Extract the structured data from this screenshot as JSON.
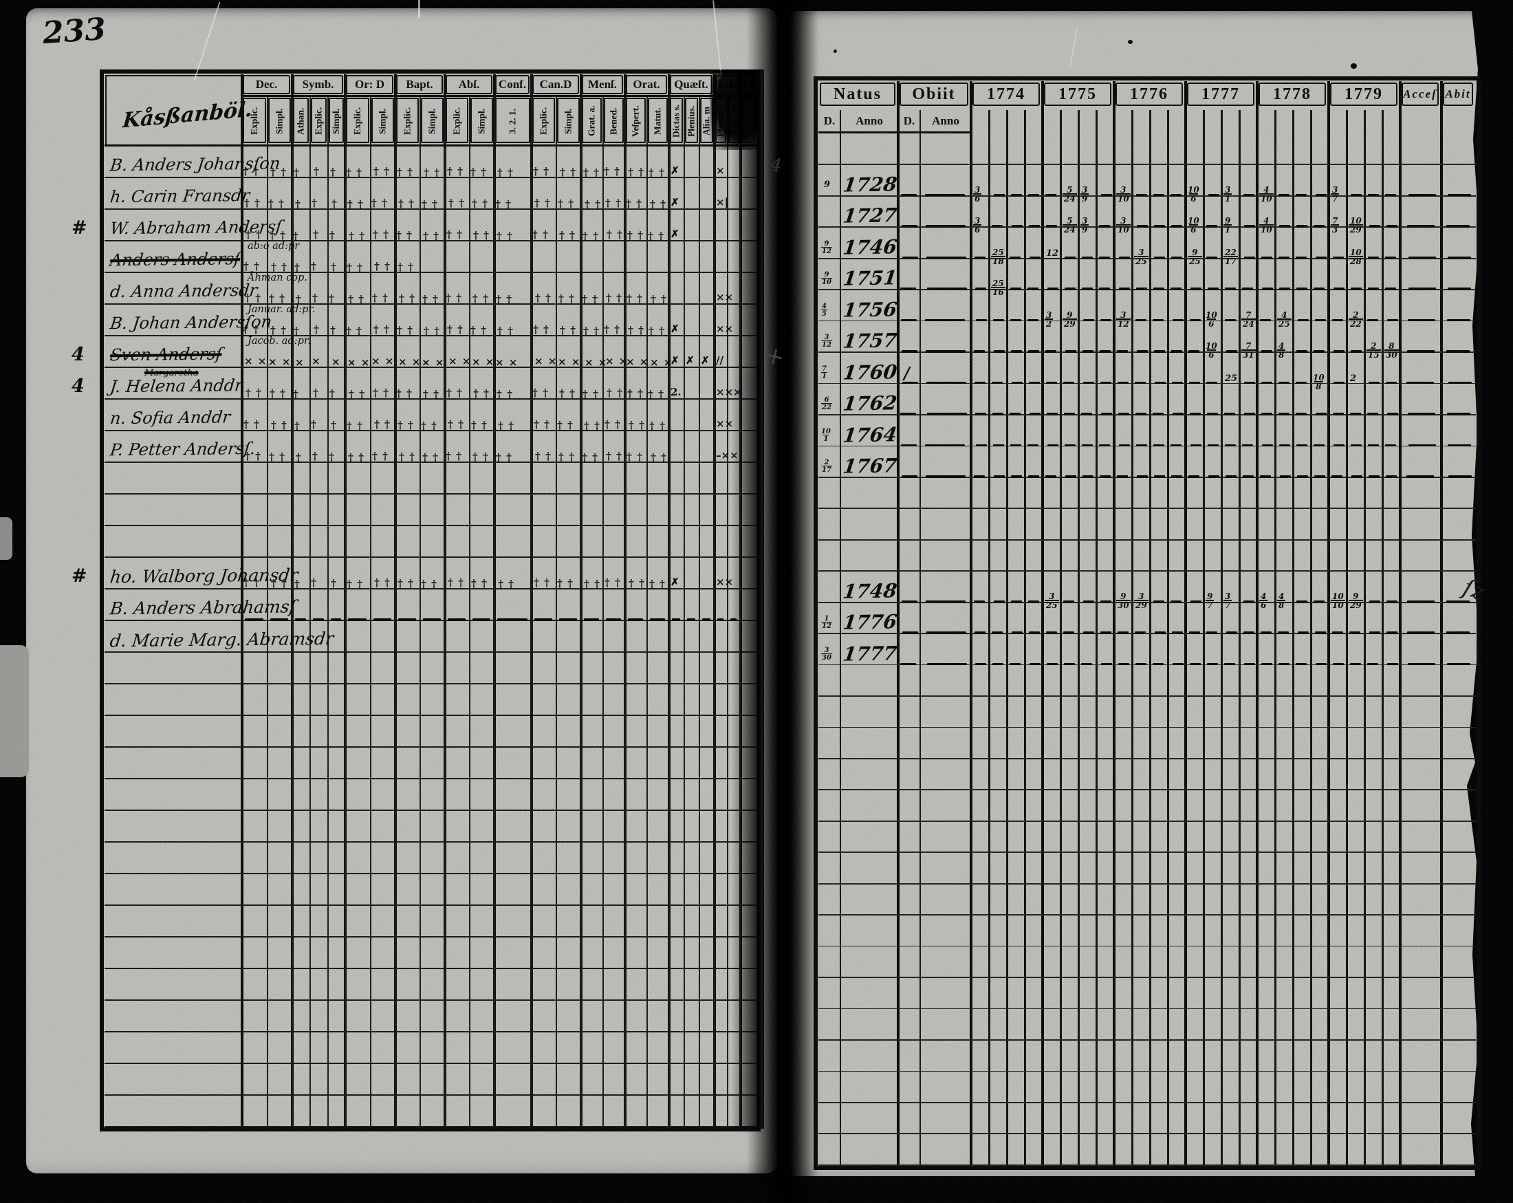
{
  "photo": {
    "page_number": "233"
  },
  "left_page": {
    "title_scribble": "Kåsßanböl.",
    "columns": [
      {
        "label": "Dec.",
        "subs": [
          "Explic.",
          "Simpl."
        ]
      },
      {
        "label": "Symb.",
        "subs": [
          "Athan.",
          "Explic.",
          "Simpl."
        ]
      },
      {
        "label": "Or: D",
        "subs": [
          "Explic.",
          "Simpl."
        ]
      },
      {
        "label": "Bapt.",
        "subs": [
          "Explic.",
          "Simpl."
        ]
      },
      {
        "label": "Abſ.",
        "subs": [
          "Explic.",
          "Simpl."
        ]
      },
      {
        "label": "Conf.",
        "subs": [
          "3. 2. 1."
        ]
      },
      {
        "label": "Can.D",
        "subs": [
          "Explic.",
          "Simpl."
        ]
      },
      {
        "label": "Menſ.",
        "subs": [
          "Grat. a.",
          "Bened."
        ]
      },
      {
        "label": "Orat.",
        "subs": [
          "Veſpert.",
          "Matut."
        ]
      },
      {
        "label": "Quæſt.",
        "subs": [
          "Dictas s.",
          "Plenius.",
          "Alia. m"
        ]
      },
      {
        "label": "Tales",
        "subs": [
          "Plenius.",
          "Alia. m"
        ]
      },
      {
        "label": "Lä",
        "subs": [
          ""
        ]
      }
    ],
    "rows": [
      {
        "i": 0,
        "name": "B. Anders Johansſon",
        "crosses": "full",
        "tail": {
          "18": "✗",
          "21": "×"
        }
      },
      {
        "i": 1,
        "name": "h. Carin Fransdr",
        "crosses": "full",
        "tail": {
          "18": "✗",
          "21": "×|"
        }
      },
      {
        "i": 2,
        "name": "W. Abraham Andersſ",
        "margin": "#",
        "crosses": "full",
        "tail": {
          "18": "✗"
        }
      },
      {
        "i": 3,
        "name": "Anders Andersſ",
        "struck": true,
        "crosses": "partial",
        "note": "ab:o  ad:pr"
      },
      {
        "i": 4,
        "name": "d. Anna Andersdr",
        "crosses": "full",
        "note": "Åhman cop.",
        "tail": {
          "21": "××"
        }
      },
      {
        "i": 5,
        "name": "B. Johan Andersſon",
        "crosses": "full",
        "note": "Januar. ad:pr.",
        "tail": {
          "18": "✗",
          "21": "××"
        }
      },
      {
        "i": 6,
        "name": "Sven Andersſ",
        "struck": true,
        "margin": "4",
        "crosses": "full",
        "cross_char": "×",
        "note": "Jacob. ad:pr.",
        "tail": {
          "18": "✗",
          "19": "✗",
          "20": "✗",
          "21": "//"
        }
      },
      {
        "i": 7,
        "name": "J. Helena Anddr",
        "margin": "4",
        "crosses": "full",
        "note_above": "Margaretha",
        "tail": {
          "18": "2.",
          "21": "×××"
        }
      },
      {
        "i": 8,
        "name": "n. Sofia Anddr",
        "crosses": "full",
        "tail": {
          "21": "××"
        }
      },
      {
        "i": 9,
        "name": "P. Petter Andersſ.",
        "crosses": "full",
        "tail": {
          "21": "–××"
        }
      },
      {
        "i": 13,
        "name": "ho. Walborg Johansdr",
        "margin": "#",
        "crosses": "full",
        "tail": {
          "18": "✗",
          "21": "××"
        }
      },
      {
        "i": 14,
        "name": "B. Anders Abrahamsſ",
        "dashes": true
      },
      {
        "i": 15,
        "name": "d. Marie Marg. Abramsdr",
        "long": true
      }
    ]
  },
  "right_page": {
    "natus_label": "Natus",
    "obiit_label": "Obiit",
    "d_label": "D.",
    "anno_label": "Anno",
    "years": [
      "1774",
      "1775",
      "1776",
      "1777",
      "1778",
      "1779"
    ],
    "acce_label": "Acceſ",
    "abit_label": "Abit",
    "dash_rows": [
      1,
      2,
      3,
      4,
      5,
      6,
      7,
      8,
      9,
      10,
      14,
      15,
      16
    ],
    "rows": [
      {
        "i": 1,
        "d": "9",
        "y": "1728",
        "e": [
          [
            0,
            0,
            "3/6"
          ],
          [
            1,
            1,
            "5/24"
          ],
          [
            1,
            2,
            "3/9"
          ],
          [
            2,
            0,
            "3/10"
          ],
          [
            3,
            0,
            "10/6"
          ],
          [
            3,
            2,
            "3/1"
          ],
          [
            4,
            0,
            "4/10"
          ],
          [
            5,
            0,
            "3/7"
          ]
        ]
      },
      {
        "i": 2,
        "d": "",
        "y": "1727",
        "e": [
          [
            0,
            0,
            "3/6"
          ],
          [
            1,
            1,
            "5/24"
          ],
          [
            1,
            2,
            "3/9"
          ],
          [
            2,
            0,
            "3/10"
          ],
          [
            3,
            0,
            "10/6"
          ],
          [
            3,
            2,
            "9/1"
          ],
          [
            4,
            0,
            "4/10"
          ],
          [
            5,
            0,
            "7/3"
          ],
          [
            5,
            1,
            "10/29"
          ]
        ]
      },
      {
        "i": 3,
        "d": "9/12",
        "y": "1746",
        "e": [
          [
            0,
            1,
            "25/18"
          ],
          [
            1,
            0,
            "12"
          ],
          [
            2,
            1,
            "3/25"
          ],
          [
            3,
            0,
            "9/25"
          ],
          [
            3,
            2,
            "22/17"
          ],
          [
            5,
            1,
            "10/28"
          ]
        ]
      },
      {
        "i": 4,
        "d": "9/10",
        "y": "1751",
        "e": [
          [
            0,
            1,
            "25/16"
          ]
        ]
      },
      {
        "i": 5,
        "d": "4/5",
        "y": "1756",
        "e": [
          [
            1,
            0,
            "3/2"
          ],
          [
            1,
            1,
            "9/29"
          ],
          [
            2,
            0,
            "3/12"
          ],
          [
            3,
            1,
            "10/6"
          ],
          [
            3,
            3,
            "7/24"
          ],
          [
            4,
            1,
            "4/25"
          ],
          [
            5,
            1,
            "2/22"
          ]
        ]
      },
      {
        "i": 6,
        "d": "3/12",
        "y": "1757",
        "e": [
          [
            3,
            1,
            "10/6"
          ],
          [
            3,
            3,
            "7/31"
          ],
          [
            4,
            1,
            "4/8"
          ],
          [
            5,
            2,
            "2/15"
          ],
          [
            5,
            3,
            "8/30"
          ]
        ]
      },
      {
        "i": 7,
        "d": "7/1",
        "y": "1760",
        "o": "/",
        "e": [
          [
            3,
            2,
            "25"
          ],
          [
            4,
            3,
            "10/8"
          ],
          [
            5,
            1,
            "2"
          ]
        ]
      },
      {
        "i": 8,
        "d": "6/22",
        "y": "1762",
        "e": []
      },
      {
        "i": 9,
        "d": "10/1",
        "y": "1764",
        "e": []
      },
      {
        "i": 10,
        "d": "2/17",
        "y": "1767",
        "e": []
      },
      {
        "i": 14,
        "d": "",
        "y": "1748",
        "e": [
          [
            1,
            0,
            "3/25"
          ],
          [
            2,
            0,
            "9/30"
          ],
          [
            2,
            1,
            "3/29"
          ],
          [
            3,
            1,
            "9/7"
          ],
          [
            3,
            2,
            "3/7"
          ],
          [
            4,
            0,
            "4/6"
          ],
          [
            4,
            1,
            "4/8"
          ],
          [
            5,
            0,
            "10/10"
          ],
          [
            5,
            1,
            "9/29"
          ]
        ]
      },
      {
        "i": 15,
        "d": "1/12",
        "y": "1776",
        "e": []
      },
      {
        "i": 16,
        "d": "3/30",
        "y": "1777",
        "e": []
      }
    ]
  },
  "annotations": {
    "gutter_plus": "+",
    "gutter_four": "4",
    "edge_flourish": "ſz"
  }
}
